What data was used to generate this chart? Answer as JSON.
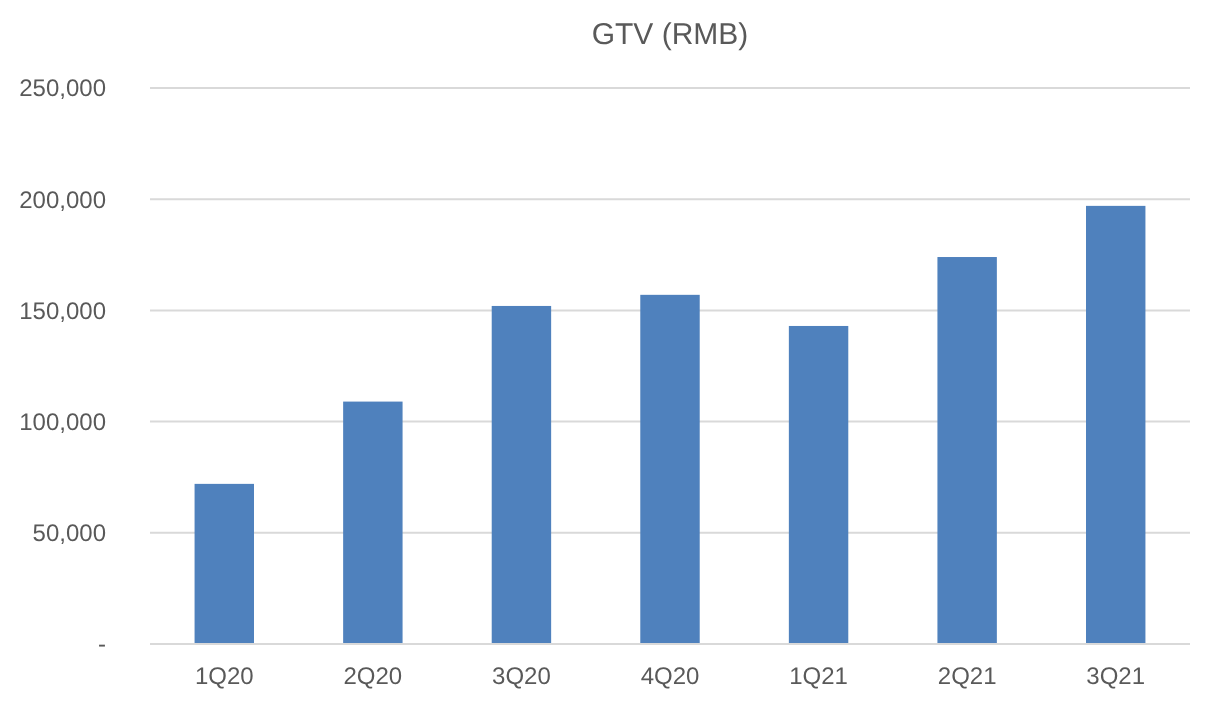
{
  "chart_data": {
    "type": "bar",
    "title": "GTV (RMB)",
    "categories": [
      "1Q20",
      "2Q20",
      "3Q20",
      "4Q20",
      "1Q21",
      "2Q21",
      "3Q21"
    ],
    "values": [
      72000,
      109000,
      152000,
      157000,
      143000,
      174000,
      197000
    ],
    "color": "#4f81bd",
    "ylim": [
      0,
      250000
    ],
    "yticks": [
      {
        "value": 0,
        "label": "-"
      },
      {
        "value": 50000,
        "label": "50,000"
      },
      {
        "value": 100000,
        "label": "100,000"
      },
      {
        "value": 150000,
        "label": "150,000"
      },
      {
        "value": 200000,
        "label": "200,000"
      },
      {
        "value": 250000,
        "label": "250,000"
      }
    ],
    "grid": "y"
  }
}
